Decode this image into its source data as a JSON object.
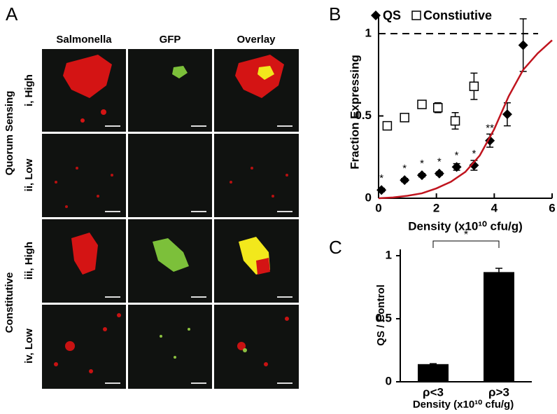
{
  "panel_a": {
    "label": "A",
    "columns": [
      "Salmonella",
      "GFP",
      "Overlay"
    ],
    "rows": [
      "i, High",
      "ii, Low",
      "iii, High",
      "iv, Low"
    ],
    "groups": [
      "Quorum Sensing",
      "Constitutive"
    ]
  },
  "chart_data": [
    {
      "type": "scatter",
      "label": "B",
      "ylabel": "Fraction Expressing",
      "xlabel": "Density (x10¹⁰ cfu/g)",
      "xlim": [
        0,
        6
      ],
      "ylim": [
        0,
        1.1
      ],
      "xticks": [
        0,
        2,
        4,
        6
      ],
      "yticks": [
        0,
        0.5,
        1
      ],
      "reference_line": 1,
      "series": [
        {
          "name": "QS",
          "color": "#000000",
          "marker": "diamond",
          "x": [
            0.1,
            0.9,
            1.5,
            2.1,
            2.7,
            3.3,
            3.85,
            4.45,
            5.0
          ],
          "values": [
            0.05,
            0.11,
            0.14,
            0.15,
            0.19,
            0.2,
            0.35,
            0.51,
            0.93
          ],
          "errors": [
            0.01,
            0.01,
            0.01,
            0.01,
            0.02,
            0.03,
            0.04,
            0.07,
            0.16
          ],
          "marker_labels": [
            "*",
            "*",
            "*",
            "*",
            "*",
            "*",
            "**",
            null,
            null
          ]
        },
        {
          "name": "Constiutive",
          "color": "#000000",
          "marker": "square-open",
          "x": [
            0.3,
            0.9,
            1.5,
            2.05,
            2.65,
            3.3
          ],
          "values": [
            0.44,
            0.49,
            0.57,
            0.55,
            0.47,
            0.68
          ],
          "errors": [
            0.01,
            0.01,
            0.01,
            0.03,
            0.05,
            0.08
          ]
        },
        {
          "type": "line",
          "color": "#c0141e",
          "x": [
            0,
            0.5,
            1,
            1.5,
            2,
            2.5,
            3,
            3.5,
            4,
            4.2,
            4.5,
            5,
            5.5,
            6
          ],
          "values": [
            0,
            0.005,
            0.015,
            0.03,
            0.06,
            0.1,
            0.16,
            0.26,
            0.42,
            0.5,
            0.62,
            0.78,
            0.88,
            0.96
          ]
        }
      ]
    },
    {
      "type": "bar",
      "label": "C",
      "ylabel": "QS / Control",
      "xlabel": "Density (x10¹⁰ cfu/g)",
      "categories": [
        "ρ<3",
        "ρ>3"
      ],
      "values": [
        0.14,
        0.87
      ],
      "errors": [
        0.004,
        0.03
      ],
      "color": "#000000",
      "ylim": [
        0,
        1.05
      ],
      "yticks": [
        0,
        0.5,
        1
      ],
      "annotation": "*"
    }
  ]
}
